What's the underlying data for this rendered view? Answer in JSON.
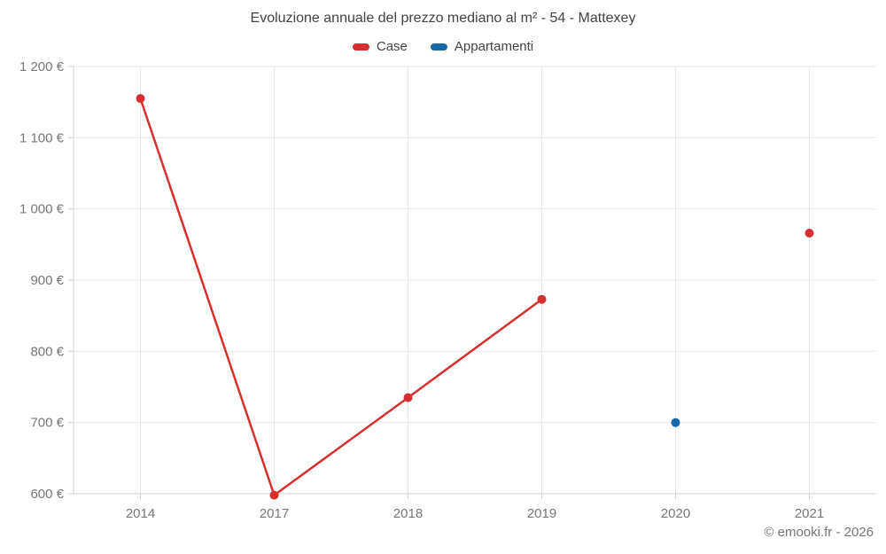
{
  "title": "Evoluzione annuale del prezzo mediano al m² - 54 - Mattexey",
  "legend": [
    {
      "label": "Case",
      "color": "#d4302f"
    },
    {
      "label": "Appartamenti",
      "color": "#1668a6"
    }
  ],
  "copyright": "© emooki.fr - 2026",
  "colors": {
    "case_red": "#d4302f",
    "appartamenti_blue": "#1668a6",
    "gridline": "#e9e9e9",
    "axis": "#cfcfcf",
    "tick_text": "#767676",
    "title_text": "#434343"
  },
  "chart_data": {
    "type": "line",
    "title": "Evoluzione annuale del prezzo mediano al m² - 54 - Mattexey",
    "categories": [
      "2014",
      "2017",
      "2018",
      "2019",
      "2020",
      "2021"
    ],
    "series": [
      {
        "name": "Case",
        "color": "#d4302f",
        "values": [
          1155,
          598,
          735,
          873,
          null,
          966
        ]
      },
      {
        "name": "Appartamenti",
        "color": "#1668a6",
        "values": [
          null,
          null,
          null,
          null,
          700,
          null
        ]
      }
    ],
    "xlabel": "",
    "ylabel": "",
    "ylim": [
      600,
      1200
    ],
    "yticks": [
      600,
      700,
      800,
      900,
      1000,
      1100,
      1200
    ],
    "ytick_labels": [
      "600 €",
      "700 €",
      "800 €",
      "900 €",
      "1 000 €",
      "1 100 €",
      "1 200 €"
    ],
    "grid": true,
    "legend_position": "top",
    "marker_radius": 5,
    "line_width": 2.5
  }
}
